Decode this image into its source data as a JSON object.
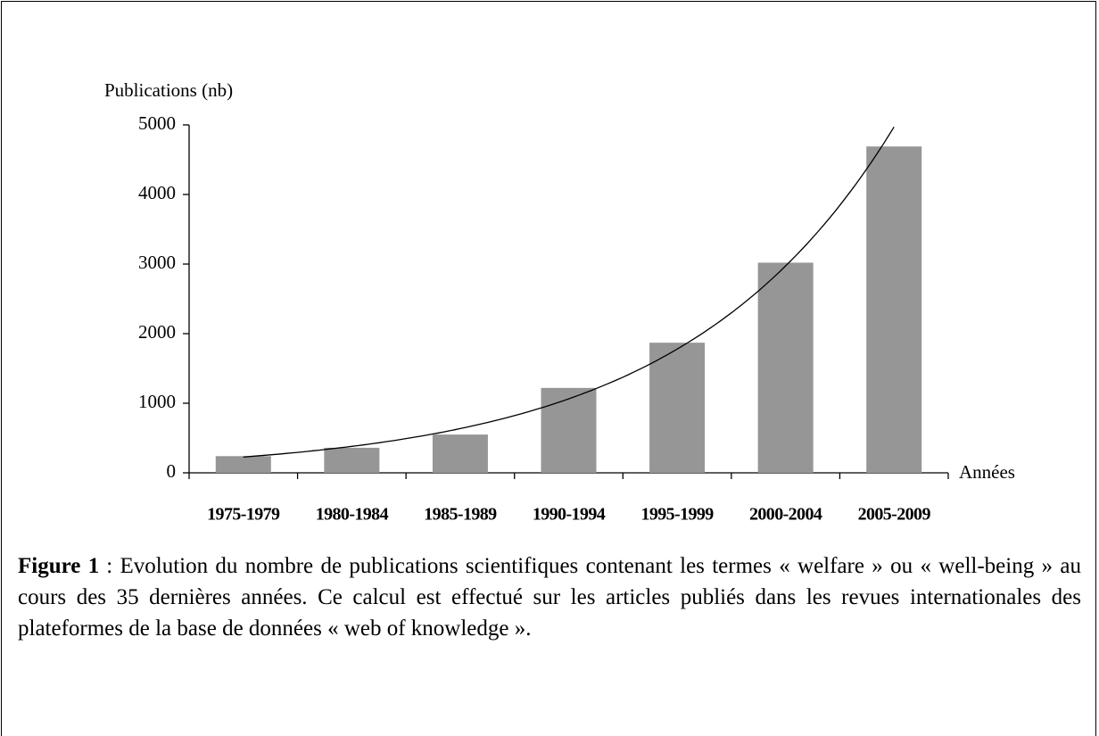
{
  "chart_data": {
    "type": "bar",
    "ylabel": "Publications (nb)",
    "xlabel": "Années",
    "categories": [
      "1975-1979",
      "1980-1984",
      "1985-1989",
      "1990-1994",
      "1995-1999",
      "2000-2004",
      "2005-2009"
    ],
    "values": [
      240,
      360,
      550,
      1220,
      1870,
      3020,
      4690
    ],
    "color": "#969696",
    "ylim": [
      0,
      5000
    ],
    "yticks": [
      0,
      1000,
      2000,
      3000,
      4000,
      5000
    ],
    "grid": false,
    "trendline": "exponential"
  },
  "caption": {
    "label": "Figure 1",
    "text": ": Evolution du nombre de publications scientifiques contenant les termes « welfare » ou « well-being » au cours des 35 dernières années. Ce calcul est effectué sur les articles publiés dans les revues internationales des plateformes de la base de données « web of knowledge »."
  }
}
